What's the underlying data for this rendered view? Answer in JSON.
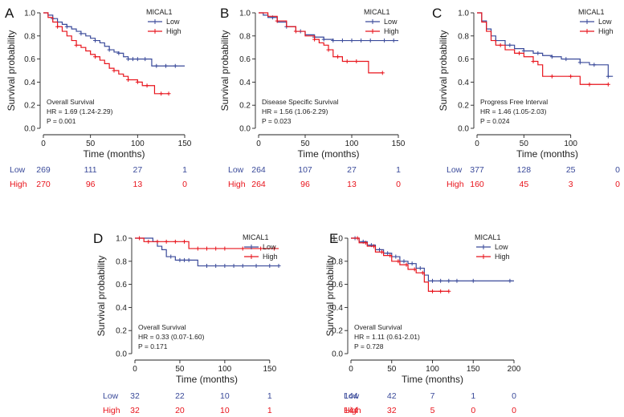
{
  "figure": {
    "legend_title": "MICAL1",
    "y_axis_label": "Survival probability",
    "x_axis_label": "Time (months)",
    "group_labels": [
      "Low",
      "High"
    ]
  },
  "colors": {
    "low": "#3a4a9a",
    "high": "#e8141c",
    "axis": "#222222"
  },
  "chart_data": [
    {
      "id": "A",
      "panel": "A",
      "type": "line",
      "title": "Overall Survival",
      "hr": "HR = 1.69 (1.24-2.29)",
      "p": "P = 0.001",
      "xlabel": "Time (months)",
      "ylabel": "Survival probability",
      "xlim": [
        0,
        150
      ],
      "xticks": [
        0,
        50,
        100,
        150
      ],
      "ylim": [
        0,
        1
      ],
      "yticks": [
        "0.0",
        "0.2",
        "0.4",
        "0.6",
        "0.8",
        "1.0"
      ],
      "legend": [
        "Low",
        "High"
      ],
      "legend_title": "MICAL1",
      "series": [
        {
          "name": "Low",
          "x": [
            0,
            5,
            10,
            15,
            20,
            25,
            30,
            35,
            40,
            45,
            50,
            55,
            60,
            65,
            70,
            75,
            80,
            85,
            90,
            95,
            100,
            110,
            115,
            120,
            150
          ],
          "y": [
            1.0,
            0.98,
            0.95,
            0.92,
            0.9,
            0.88,
            0.86,
            0.84,
            0.82,
            0.8,
            0.78,
            0.76,
            0.74,
            0.71,
            0.68,
            0.66,
            0.65,
            0.62,
            0.6,
            0.6,
            0.6,
            0.6,
            0.54,
            0.54,
            0.54
          ],
          "censor_x": [
            10,
            25,
            40,
            55,
            70,
            80,
            90,
            95,
            100,
            108,
            120,
            130,
            140
          ]
        },
        {
          "name": "High",
          "x": [
            0,
            5,
            10,
            15,
            20,
            25,
            30,
            35,
            40,
            45,
            50,
            55,
            60,
            65,
            70,
            75,
            80,
            85,
            90,
            100,
            105,
            110,
            118,
            125,
            133
          ],
          "y": [
            1.0,
            0.96,
            0.92,
            0.88,
            0.84,
            0.8,
            0.76,
            0.72,
            0.7,
            0.67,
            0.64,
            0.62,
            0.59,
            0.56,
            0.52,
            0.5,
            0.47,
            0.45,
            0.42,
            0.4,
            0.37,
            0.37,
            0.3,
            0.3,
            0.3
          ],
          "censor_x": [
            15,
            35,
            55,
            75,
            90,
            100,
            110,
            125,
            133
          ]
        }
      ],
      "risk_table": {
        "times": [
          0,
          50,
          100,
          150
        ],
        "Low": [
          269,
          111,
          27,
          1
        ],
        "High": [
          270,
          96,
          13,
          0
        ]
      }
    },
    {
      "id": "B",
      "panel": "B",
      "type": "line",
      "title": "Disease Specific Survival",
      "hr": "HR = 1.56 (1.06-2.29)",
      "p": "P = 0.023",
      "xlabel": "Time (months)",
      "ylabel": "Survival probability",
      "xlim": [
        0,
        150
      ],
      "xticks": [
        0,
        50,
        100,
        150
      ],
      "ylim": [
        0,
        1
      ],
      "yticks": [
        "0.0",
        "0.2",
        "0.4",
        "0.6",
        "0.8",
        "1.0"
      ],
      "legend": [
        "Low",
        "High"
      ],
      "legend_title": "MICAL1",
      "series": [
        {
          "name": "Low",
          "x": [
            0,
            5,
            10,
            20,
            30,
            40,
            50,
            60,
            70,
            80,
            90,
            100,
            150
          ],
          "y": [
            1.0,
            0.98,
            0.96,
            0.92,
            0.88,
            0.84,
            0.81,
            0.79,
            0.77,
            0.76,
            0.76,
            0.76,
            0.76
          ],
          "censor_x": [
            15,
            30,
            45,
            60,
            70,
            80,
            90,
            100,
            110,
            120,
            135,
            145
          ]
        },
        {
          "name": "High",
          "x": [
            0,
            10,
            20,
            30,
            40,
            50,
            60,
            65,
            70,
            75,
            80,
            90,
            100,
            110,
            118,
            125,
            133
          ],
          "y": [
            1.0,
            0.97,
            0.93,
            0.88,
            0.84,
            0.8,
            0.77,
            0.74,
            0.72,
            0.68,
            0.62,
            0.58,
            0.58,
            0.58,
            0.48,
            0.48,
            0.48
          ],
          "censor_x": [
            20,
            40,
            60,
            75,
            85,
            95,
            105,
            133
          ]
        }
      ],
      "risk_table": {
        "times": [
          0,
          50,
          100,
          150
        ],
        "Low": [
          264,
          107,
          27,
          1
        ],
        "High": [
          264,
          96,
          13,
          0
        ]
      }
    },
    {
      "id": "C",
      "panel": "C",
      "type": "line",
      "title": "Progress Free Interval",
      "hr": "HR = 1.46 (1.05-2.03)",
      "p": "P = 0.024",
      "xlabel": "Time (months)",
      "ylabel": "Survival probability",
      "xlim": [
        0,
        150
      ],
      "xticks": [
        0,
        50,
        100
      ],
      "ylim": [
        0,
        1
      ],
      "yticks": [
        "0.0",
        "0.2",
        "0.4",
        "0.6",
        "0.8",
        "1.0"
      ],
      "legend": [
        "Low",
        "High"
      ],
      "legend_title": "MICAL1",
      "series": [
        {
          "name": "Low",
          "x": [
            0,
            5,
            10,
            15,
            20,
            30,
            40,
            50,
            60,
            70,
            80,
            90,
            100,
            110,
            120,
            130,
            140,
            145
          ],
          "y": [
            1.0,
            0.93,
            0.86,
            0.8,
            0.76,
            0.72,
            0.69,
            0.67,
            0.65,
            0.63,
            0.62,
            0.6,
            0.6,
            0.57,
            0.55,
            0.55,
            0.45,
            0.45
          ],
          "censor_x": [
            20,
            35,
            50,
            65,
            80,
            95,
            110,
            125,
            140
          ]
        },
        {
          "name": "High",
          "x": [
            0,
            5,
            10,
            15,
            20,
            30,
            40,
            50,
            60,
            65,
            70,
            80,
            90,
            100,
            110,
            120,
            130,
            140
          ],
          "y": [
            1.0,
            0.92,
            0.84,
            0.76,
            0.72,
            0.68,
            0.65,
            0.62,
            0.58,
            0.55,
            0.45,
            0.45,
            0.45,
            0.45,
            0.38,
            0.38,
            0.38,
            0.38
          ],
          "censor_x": [
            25,
            45,
            60,
            80,
            100,
            120,
            140
          ]
        }
      ],
      "risk_table": {
        "times": [
          0,
          50,
          100,
          150
        ],
        "Low": [
          377,
          128,
          25,
          0
        ],
        "High": [
          160,
          45,
          3,
          0
        ]
      }
    },
    {
      "id": "D",
      "panel": "D",
      "type": "line",
      "title": "Overall Survival",
      "hr": "HR = 0.33 (0.07-1.60)",
      "p": "P = 0.171",
      "xlabel": "Time (months)",
      "ylabel": "Survival probability",
      "xlim": [
        0,
        160
      ],
      "xticks": [
        0,
        50,
        100,
        150
      ],
      "ylim": [
        0,
        1
      ],
      "yticks": [
        "0.0",
        "0.2",
        "0.4",
        "0.6",
        "0.8",
        "1.0"
      ],
      "legend": [
        "Low",
        "High"
      ],
      "legend_title": "MICAL1",
      "series": [
        {
          "name": "Low",
          "x": [
            0,
            20,
            25,
            30,
            35,
            45,
            70,
            160
          ],
          "y": [
            1.0,
            0.97,
            0.93,
            0.9,
            0.84,
            0.81,
            0.76,
            0.76
          ],
          "censor_x": [
            40,
            50,
            55,
            60,
            80,
            90,
            100,
            110,
            120,
            135,
            150,
            160
          ]
        },
        {
          "name": "High",
          "x": [
            0,
            10,
            55,
            60,
            160
          ],
          "y": [
            1.0,
            0.97,
            0.97,
            0.91,
            0.91
          ],
          "censor_x": [
            5,
            15,
            25,
            35,
            45,
            55,
            70,
            80,
            90,
            100,
            120,
            140,
            155
          ]
        }
      ],
      "risk_table": {
        "times": [
          0,
          50,
          100,
          150
        ],
        "Low": [
          32,
          22,
          10,
          1
        ],
        "High": [
          32,
          20,
          10,
          1
        ]
      }
    },
    {
      "id": "E",
      "panel": "E",
      "type": "line",
      "title": "Overall Survival",
      "hr": "HR = 1.11 (0.61-2.01)",
      "p": "P = 0.728",
      "xlabel": "Time (months)",
      "ylabel": "Survival probability",
      "xlim": [
        0,
        200
      ],
      "xticks": [
        0,
        50,
        100,
        150,
        200
      ],
      "ylim": [
        0,
        1
      ],
      "yticks": [
        "0.0",
        "0.2",
        "0.4",
        "0.6",
        "0.8",
        "1.0"
      ],
      "legend": [
        "Low",
        "High"
      ],
      "legend_title": "MICAL1",
      "series": [
        {
          "name": "Low",
          "x": [
            0,
            10,
            20,
            30,
            40,
            50,
            60,
            70,
            80,
            90,
            95,
            100,
            200
          ],
          "y": [
            1.0,
            0.97,
            0.94,
            0.9,
            0.87,
            0.84,
            0.8,
            0.78,
            0.74,
            0.68,
            0.63,
            0.63,
            0.63
          ],
          "censor_x": [
            5,
            15,
            25,
            35,
            45,
            55,
            65,
            75,
            85,
            100,
            110,
            120,
            130,
            150,
            195
          ]
        },
        {
          "name": "High",
          "x": [
            0,
            10,
            20,
            30,
            40,
            50,
            60,
            70,
            80,
            90,
            95,
            100,
            120
          ],
          "y": [
            1.0,
            0.96,
            0.93,
            0.88,
            0.85,
            0.8,
            0.77,
            0.73,
            0.7,
            0.62,
            0.54,
            0.54,
            0.54
          ],
          "censor_x": [
            8,
            18,
            28,
            38,
            48,
            58,
            68,
            78,
            88,
            100,
            110,
            120
          ]
        }
      ],
      "risk_table": {
        "times": [
          0,
          50,
          100,
          150,
          200
        ],
        "Low": [
          144,
          42,
          7,
          1,
          0
        ],
        "High": [
          144,
          32,
          5,
          0,
          0
        ]
      }
    }
  ]
}
